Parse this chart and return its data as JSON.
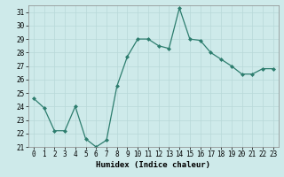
{
  "x": [
    0,
    1,
    2,
    3,
    4,
    5,
    6,
    7,
    8,
    9,
    10,
    11,
    12,
    13,
    14,
    15,
    16,
    17,
    18,
    19,
    20,
    21,
    22,
    23
  ],
  "y": [
    24.6,
    23.9,
    22.2,
    22.2,
    24.0,
    21.6,
    21.0,
    21.5,
    25.5,
    27.7,
    29.0,
    29.0,
    28.5,
    28.3,
    31.3,
    29.0,
    28.9,
    28.0,
    27.5,
    27.0,
    26.4,
    26.4,
    26.8,
    26.8
  ],
  "xlabel": "Humidex (Indice chaleur)",
  "ylim": [
    21,
    31.5
  ],
  "yticks": [
    21,
    22,
    23,
    24,
    25,
    26,
    27,
    28,
    29,
    30,
    31
  ],
  "xticks": [
    0,
    1,
    2,
    3,
    4,
    5,
    6,
    7,
    8,
    9,
    10,
    11,
    12,
    13,
    14,
    15,
    16,
    17,
    18,
    19,
    20,
    21,
    22,
    23
  ],
  "line_color": "#2d7d6e",
  "marker": "D",
  "marker_size": 2.0,
  "background_color": "#ceeaea",
  "grid_color": "#b8d8d8",
  "tick_fontsize": 5.5,
  "xlabel_fontsize": 6.5
}
